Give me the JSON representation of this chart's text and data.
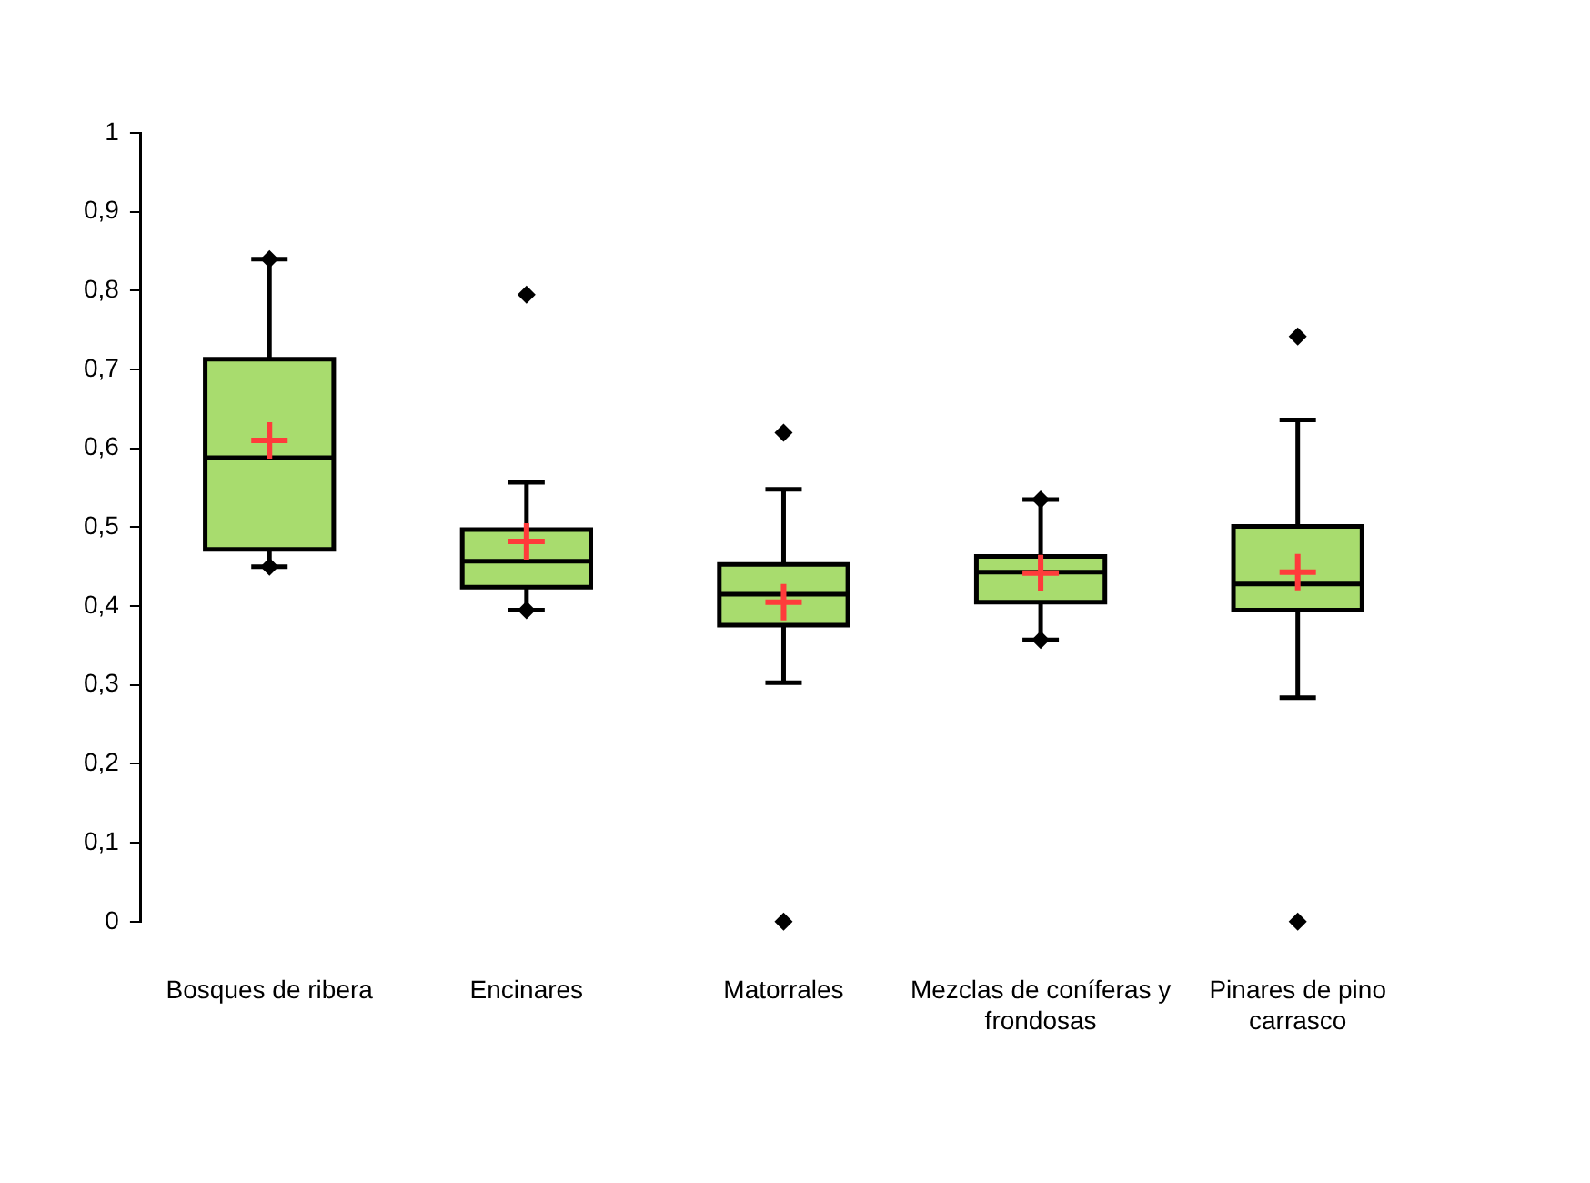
{
  "chart_data": {
    "type": "box",
    "categories": [
      "Bosques de ribera",
      "Encinares",
      "Matorrales",
      "Mezclas de coníferas y frondosas",
      "Pinares de pino carrasco"
    ],
    "series": [
      {
        "color": "#a8dc6e",
        "boxes": [
          {
            "low": 0.45,
            "q1": 0.472,
            "q3": 0.713,
            "median": 0.588,
            "high": 0.84,
            "mean": 0.61,
            "outliers": [
              0.84,
              0.45
            ]
          },
          {
            "low": 0.395,
            "q1": 0.424,
            "q3": 0.497,
            "median": 0.457,
            "high": 0.557,
            "mean": 0.482,
            "outliers": [
              0.795,
              0.395
            ]
          },
          {
            "low": 0.303,
            "q1": 0.376,
            "q3": 0.453,
            "median": 0.415,
            "high": 0.548,
            "mean": 0.405,
            "outliers": [
              0.62,
              0
            ]
          },
          {
            "low": 0.357,
            "q1": 0.405,
            "q3": 0.463,
            "median": 0.443,
            "high": 0.535,
            "mean": 0.442,
            "outliers": [
              0.535,
              0.357
            ]
          },
          {
            "low": 0.284,
            "q1": 0.395,
            "q3": 0.501,
            "median": 0.428,
            "high": 0.636,
            "mean": 0.443,
            "outliers": [
              0.742,
              0
            ]
          }
        ]
      }
    ],
    "ylim": [
      0,
      1
    ],
    "yticks": [
      0,
      {
        "value": 0.1,
        "label": "0,1"
      },
      {
        "value": 0.2,
        "label": "0,2"
      },
      {
        "value": 0.3,
        "label": "0,3"
      },
      {
        "value": 0.4,
        "label": "0,4"
      },
      {
        "value": 0.5,
        "label": "0,5"
      },
      {
        "value": 0.6,
        "label": "0,6"
      },
      {
        "value": 0.7,
        "label": "0,7"
      },
      {
        "value": 0.8,
        "label": "0,8"
      },
      {
        "value": 0.9,
        "label": "0,9"
      },
      1
    ],
    "grid": false,
    "legend": false,
    "marker": "diamond"
  }
}
